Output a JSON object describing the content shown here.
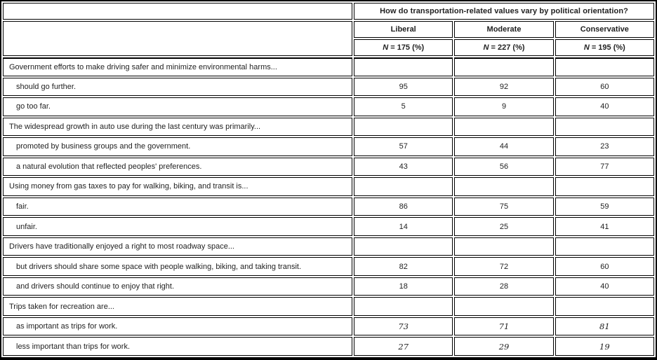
{
  "table": {
    "header": {
      "question": "How do transportation-related values vary by political orientation?",
      "n_symbol": "N",
      "columns": [
        {
          "label": "Liberal",
          "n_value": "= 175 (%)"
        },
        {
          "label": "Moderate",
          "n_value": "= 227 (%)"
        },
        {
          "label": "Conservative",
          "n_value": "= 195 (%)"
        }
      ]
    },
    "sections": [
      {
        "statement": "Government efforts to make driving safer and minimize environmental harms...",
        "rows": [
          {
            "label": "should go further.",
            "values": [
              "95",
              "92",
              "60"
            ]
          },
          {
            "label": "go too far.",
            "values": [
              "5",
              "9",
              "40"
            ]
          }
        ]
      },
      {
        "statement": "The widespread growth in auto use during the last century was primarily...",
        "rows": [
          {
            "label": "promoted by business groups and the government.",
            "values": [
              "57",
              "44",
              "23"
            ]
          },
          {
            "label": "a natural evolution that reflected peoples' preferences.",
            "values": [
              "43",
              "56",
              "77"
            ]
          }
        ]
      },
      {
        "statement": "Using money from gas taxes to pay for walking, biking, and transit is...",
        "rows": [
          {
            "label": "fair.",
            "values": [
              "86",
              "75",
              "59"
            ]
          },
          {
            "label": "unfair.",
            "values": [
              "14",
              "25",
              "41"
            ]
          }
        ]
      },
      {
        "statement": "Drivers have traditionally enjoyed a right to most roadway space...",
        "rows": [
          {
            "label": "but drivers should share some space with people walking, biking, and taking transit.",
            "values": [
              "82",
              "72",
              "60"
            ]
          },
          {
            "label": "and drivers should continue to enjoy that right.",
            "values": [
              "18",
              "28",
              "40"
            ]
          }
        ]
      },
      {
        "statement": "Trips taken for recreation are...",
        "rows": [
          {
            "label": "as important as trips for work.",
            "values": [
              "73",
              "71",
              "81"
            ],
            "italic": true
          },
          {
            "label": "less important than trips for work.",
            "values": [
              "27",
              "29",
              "19"
            ],
            "italic": true
          }
        ]
      }
    ]
  }
}
